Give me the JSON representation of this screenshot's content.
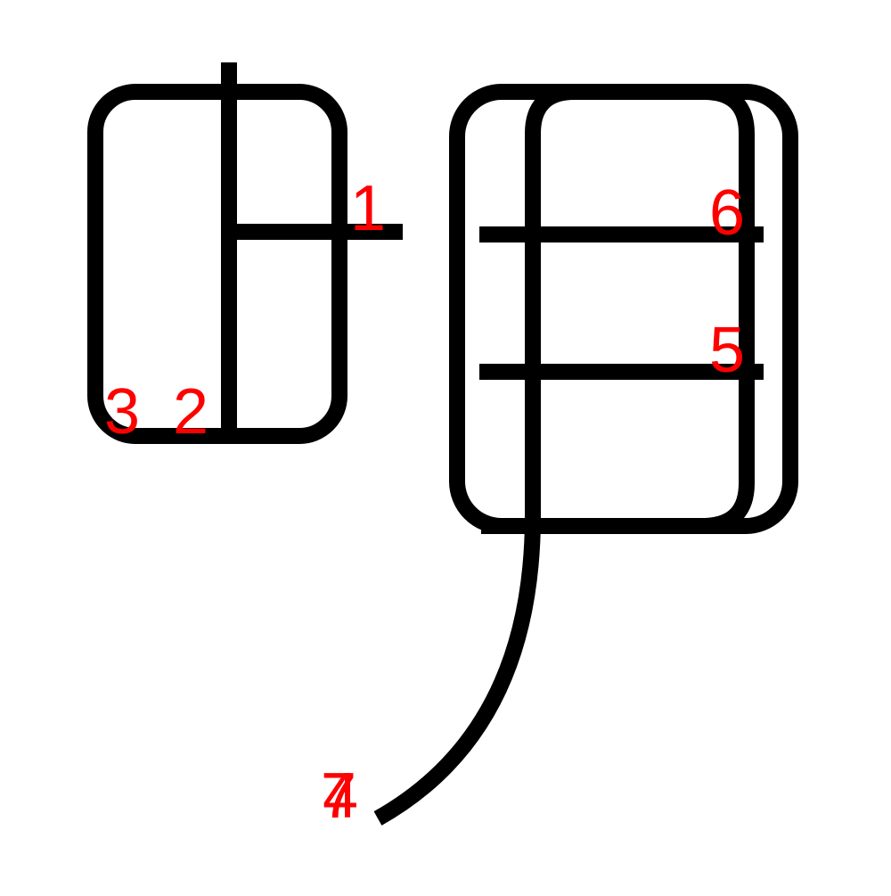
{
  "diagram": {
    "stroke_color": "#000000",
    "label_color": "#ff0000",
    "stroke_numbers": {
      "n1": "1",
      "n2": "2",
      "n3": "3",
      "n4": "4",
      "n5": "5",
      "n6": "6",
      "n7": "7"
    }
  }
}
